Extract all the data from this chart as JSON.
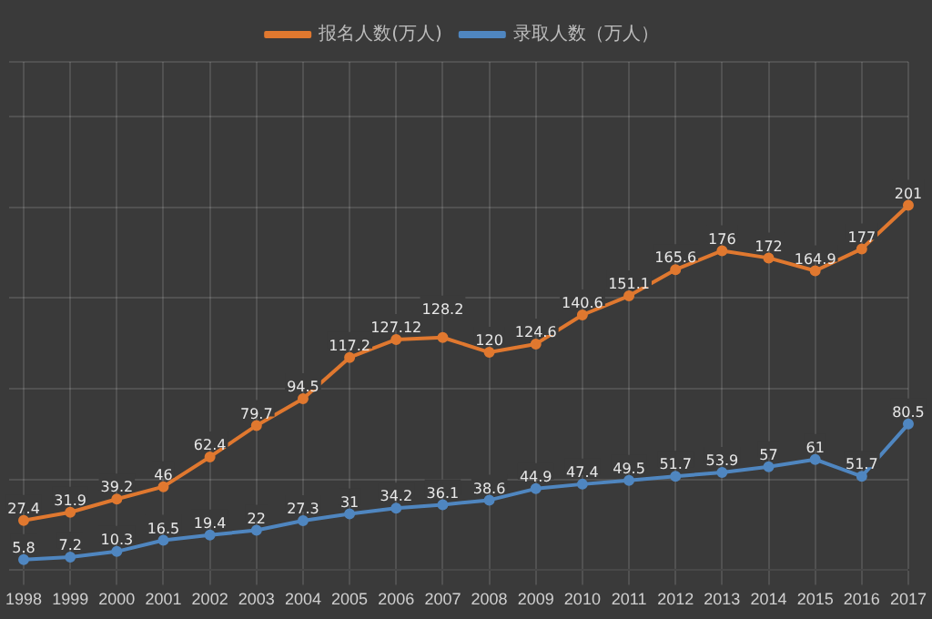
{
  "chart_data": {
    "type": "line",
    "categories": [
      "1998",
      "1999",
      "2000",
      "2001",
      "2002",
      "2003",
      "2004",
      "2005",
      "2006",
      "2007",
      "2008",
      "2009",
      "2010",
      "2011",
      "2012",
      "2013",
      "2014",
      "2015",
      "2016",
      "2017"
    ],
    "series": [
      {
        "name": "报名人数(万人)",
        "color": "#e0782f",
        "values": [
          27.4,
          31.9,
          39.2,
          46,
          62.4,
          79.7,
          94.5,
          117.2,
          127.12,
          128.2,
          120,
          124.6,
          140.6,
          151.1,
          165.6,
          176,
          172,
          164.9,
          177,
          201
        ]
      },
      {
        "name": "录取人数（万人）",
        "color": "#4f86c0",
        "values": [
          5.8,
          7.2,
          10.3,
          16.5,
          19.4,
          22,
          27.3,
          31,
          34.2,
          36.1,
          38.6,
          44.9,
          47.4,
          49.5,
          51.7,
          53.9,
          57,
          61,
          51.7,
          80.5
        ]
      }
    ],
    "relative": false,
    "ylim": [
      0,
      280
    ],
    "data_labels": true,
    "grid": true,
    "legend": "top",
    "marker": "circle",
    "tick_labels": "x"
  }
}
